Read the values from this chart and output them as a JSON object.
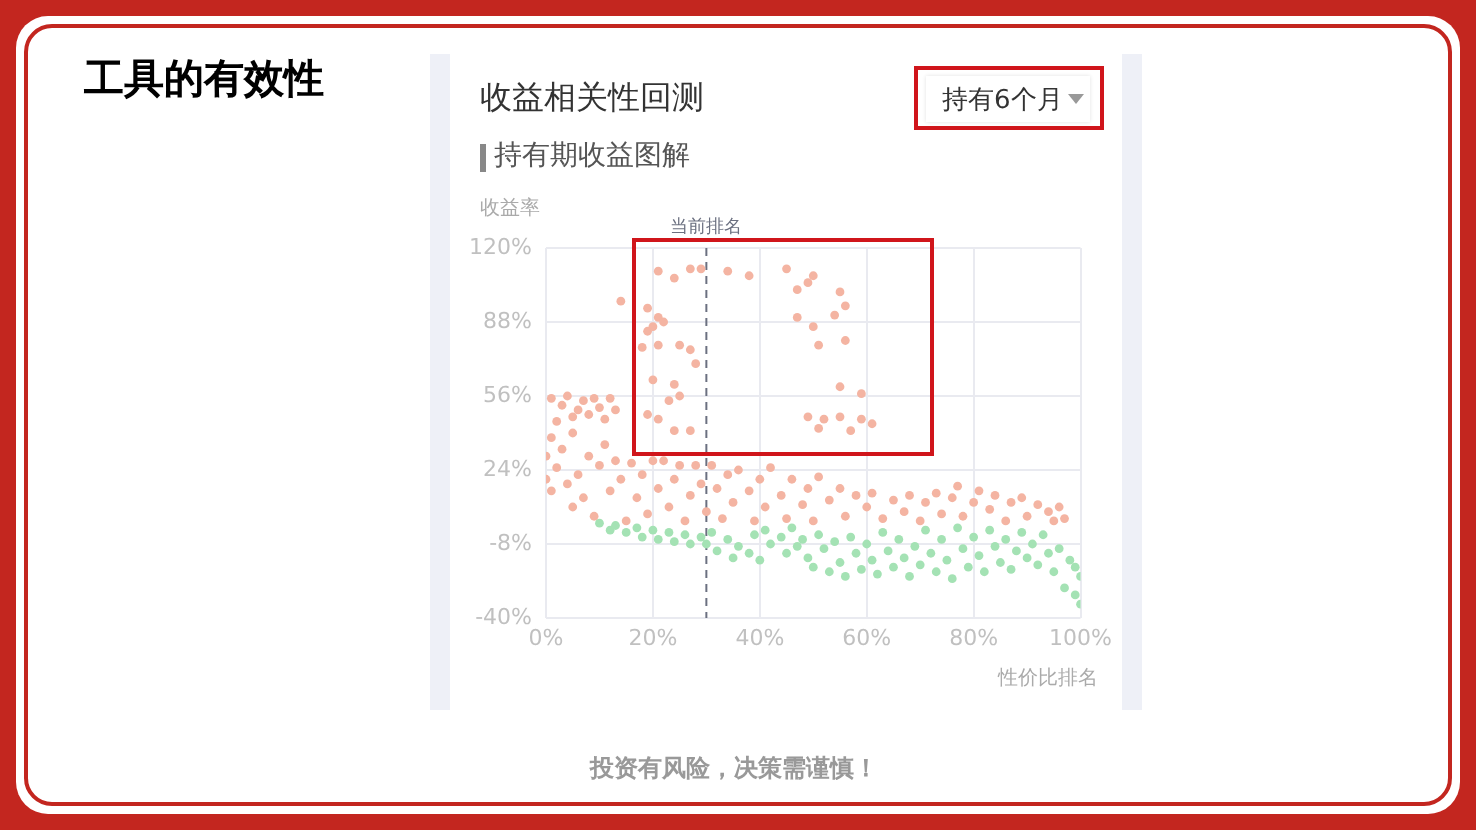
{
  "chart_data": {
    "type": "scatter",
    "title": "工具的有效性",
    "subtitle": "收益相关性回测",
    "xlabel": "性价比排名",
    "ylabel": "收益率",
    "annotations": [
      "持有6个月",
      "持有期收益图解",
      "投资有风险，决策需谨慎！"
    ],
    "xlim": [
      0,
      100
    ],
    "ylim": [
      -40,
      120
    ],
    "xticks": [
      {
        "value": 0,
        "label": "0%"
      },
      {
        "value": 20,
        "label": "20%"
      },
      {
        "value": 40,
        "label": "40%"
      },
      {
        "value": 60,
        "label": "60%"
      },
      {
        "value": 80,
        "label": "80%"
      },
      {
        "value": 100,
        "label": "100%"
      }
    ],
    "yticks": [
      {
        "value": -40,
        "label": "-40%"
      },
      {
        "value": -8,
        "label": "-8%"
      },
      {
        "value": 24,
        "label": "24%"
      },
      {
        "value": 56,
        "label": "56%"
      },
      {
        "value": 88,
        "label": "88%"
      },
      {
        "value": 120,
        "label": "120%"
      }
    ],
    "grid": true,
    "marker": "circle",
    "ref_lines": [
      {
        "axis": "x",
        "value": 30,
        "label": "当前排名",
        "color": "#6b7080",
        "line_style": "dashed"
      }
    ],
    "series": [
      {
        "color": "#f4b4a2",
        "x": [
          21,
          24,
          27,
          29,
          34,
          38,
          45,
          50,
          49,
          47,
          55,
          56,
          54,
          47,
          50,
          56,
          51,
          55,
          59,
          49,
          52,
          55,
          59,
          51,
          57,
          61,
          14,
          19,
          21,
          20,
          22,
          19,
          21,
          25,
          27,
          18,
          28,
          20,
          24,
          25,
          23,
          19,
          21,
          24,
          27,
          1,
          3,
          4,
          6,
          7,
          9,
          10,
          12,
          5,
          2,
          8,
          11,
          13,
          0,
          0,
          1,
          1,
          2,
          3,
          4,
          5,
          5,
          6,
          7,
          8,
          9,
          10,
          11,
          12,
          13,
          14,
          15,
          16,
          17,
          18,
          19,
          20,
          21,
          22,
          23,
          24,
          25,
          26,
          27,
          28,
          29,
          30,
          31,
          32,
          33,
          34,
          35,
          36,
          38,
          39,
          40,
          41,
          42,
          44,
          45,
          46,
          48,
          49,
          50,
          51,
          53,
          55,
          56,
          58,
          60,
          61,
          63,
          65,
          67,
          68,
          70,
          71,
          73,
          74,
          76,
          77,
          78,
          80,
          81,
          83,
          84,
          86,
          87,
          89,
          90,
          92,
          94,
          95,
          96,
          97
        ],
        "values": [
          110,
          107,
          111,
          111,
          110,
          108,
          111,
          108,
          105,
          102,
          101,
          95,
          91,
          90,
          86,
          80,
          78,
          60,
          57,
          47,
          46,
          47,
          46,
          42,
          41,
          44,
          97,
          94,
          90,
          86,
          88,
          84,
          78,
          78,
          76,
          77,
          70,
          63,
          61,
          56,
          54,
          48,
          46,
          41,
          41,
          55,
          52,
          56,
          50,
          54,
          55,
          51,
          55,
          47,
          45,
          48,
          46,
          50,
          30,
          20,
          15,
          38,
          25,
          33,
          18,
          8,
          40,
          22,
          12,
          30,
          4,
          26,
          35,
          15,
          28,
          20,
          2,
          27,
          12,
          22,
          5,
          28,
          16,
          28,
          8,
          20,
          26,
          2,
          13,
          26,
          18,
          6,
          26,
          16,
          3,
          22,
          10,
          24,
          15,
          2,
          20,
          8,
          25,
          13,
          3,
          20,
          9,
          16,
          2,
          21,
          11,
          16,
          4,
          13,
          8,
          14,
          3,
          11,
          6,
          13,
          2,
          10,
          14,
          5,
          12,
          17,
          4,
          10,
          15,
          7,
          13,
          2,
          10,
          12,
          4,
          9,
          6,
          2,
          8,
          3
        ]
      },
      {
        "color": "#a4e2b4",
        "x": [
          10,
          12,
          13,
          15,
          17,
          18,
          20,
          21,
          23,
          24,
          26,
          27,
          29,
          30,
          31,
          32,
          34,
          35,
          36,
          38,
          39,
          40,
          41,
          42,
          44,
          45,
          46,
          47,
          48,
          49,
          50,
          51,
          52,
          53,
          54,
          55,
          56,
          57,
          58,
          59,
          60,
          61,
          62,
          63,
          64,
          65,
          66,
          67,
          68,
          69,
          70,
          71,
          72,
          73,
          74,
          75,
          76,
          77,
          78,
          79,
          80,
          81,
          82,
          83,
          84,
          85,
          86,
          87,
          88,
          89,
          90,
          91,
          92,
          93,
          94,
          95,
          96,
          97,
          98,
          99,
          100,
          100,
          99
        ],
        "values": [
          1,
          -2,
          0,
          -3,
          -1,
          -5,
          -2,
          -6,
          -3,
          -7,
          -4,
          -8,
          -5,
          -8,
          -3,
          -11,
          -6,
          -14,
          -9,
          -12,
          -4,
          -15,
          -2,
          -8,
          -5,
          -12,
          -1,
          -9,
          -6,
          -14,
          -18,
          -4,
          -10,
          -20,
          -7,
          -16,
          -22,
          -5,
          -12,
          -19,
          -8,
          -15,
          -21,
          -3,
          -11,
          -18,
          -6,
          -14,
          -22,
          -9,
          -17,
          -2,
          -12,
          -20,
          -6,
          -15,
          -23,
          -1,
          -10,
          -18,
          -5,
          -13,
          -20,
          -2,
          -9,
          -16,
          -6,
          -19,
          -11,
          -3,
          -14,
          -8,
          -17,
          -4,
          -12,
          -20,
          -10,
          -27,
          -15,
          -30,
          -22,
          -34,
          -18
        ]
      }
    ]
  }
}
